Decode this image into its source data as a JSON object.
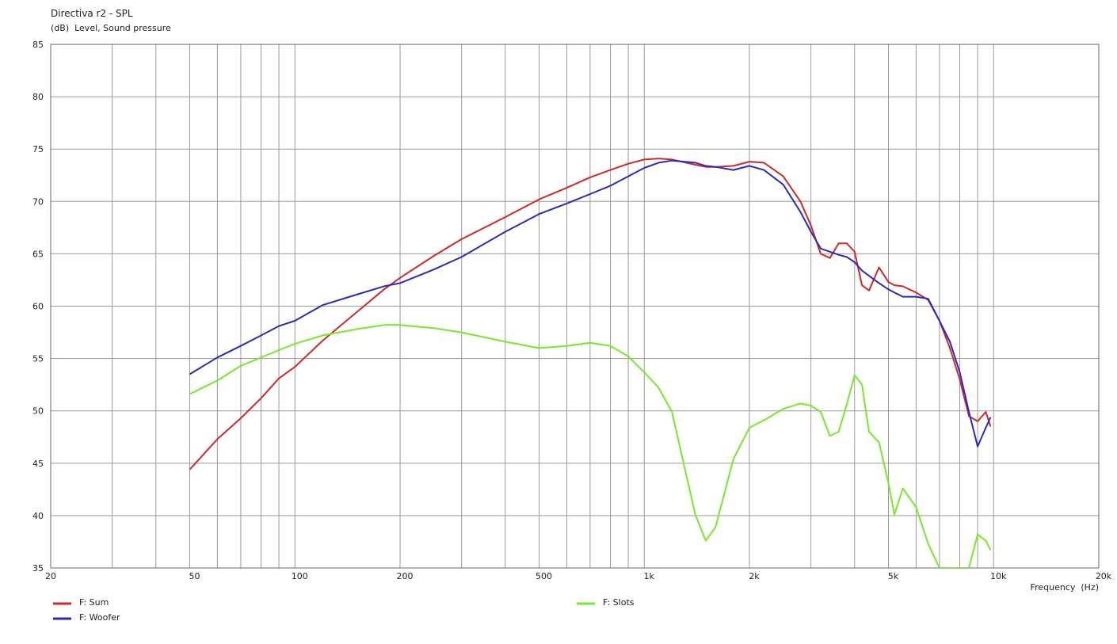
{
  "chart_data": {
    "type": "line",
    "title": "Directiva r2 - SPL",
    "y_label": "(dB)  Level, Sound pressure",
    "x_label": "Frequency  (Hz)",
    "xscale": "log",
    "grid": true,
    "xlim": [
      20,
      20000
    ],
    "ylim": [
      35,
      85
    ],
    "xticks": [
      20,
      50,
      100,
      200,
      500,
      {
        "value": 1000,
        "label": "1k"
      },
      {
        "value": 2000,
        "label": "2k"
      },
      {
        "value": 5000,
        "label": "5k"
      },
      {
        "value": 10000,
        "label": "10k"
      },
      {
        "value": 20000,
        "label": "20k"
      }
    ],
    "x_minor_ticks": [
      30,
      40,
      60,
      70,
      80,
      90,
      300,
      400,
      600,
      700,
      800,
      900,
      3000,
      4000,
      6000,
      7000,
      8000,
      9000
    ],
    "yticks": [
      35,
      40,
      45,
      50,
      55,
      60,
      65,
      70,
      75,
      80,
      85
    ],
    "x": [
      50,
      60,
      70,
      80,
      90,
      100,
      120,
      150,
      180,
      200,
      250,
      300,
      400,
      500,
      600,
      700,
      800,
      900,
      1000,
      1100,
      1200,
      1400,
      1500,
      1600,
      1800,
      2000,
      2200,
      2500,
      2800,
      3000,
      3200,
      3400,
      3600,
      3800,
      4000,
      4200,
      4400,
      4700,
      5000,
      5200,
      5500,
      6000,
      6500,
      7000,
      7500,
      8000,
      8500,
      9000,
      9500,
      9800
    ],
    "series": [
      {
        "name": "F: Sum",
        "color": "#cc2a2a",
        "values": [
          44.4,
          47.3,
          49.3,
          51.2,
          53.1,
          54.2,
          56.7,
          59.4,
          61.6,
          62.7,
          64.8,
          66.4,
          68.5,
          70.2,
          71.3,
          72.3,
          73.0,
          73.6,
          74.0,
          74.1,
          74.0,
          73.5,
          73.3,
          73.3,
          73.4,
          73.8,
          73.7,
          72.4,
          70.0,
          67.7,
          65.0,
          64.6,
          66.0,
          66.0,
          65.2,
          62.0,
          61.5,
          63.7,
          62.3,
          62.0,
          61.9,
          61.3,
          60.6,
          58.6,
          56.0,
          53.0,
          49.5,
          49.0,
          49.9,
          48.5
        ]
      },
      {
        "name": "F: Woofer",
        "color": "#2a2abb",
        "values": [
          53.5,
          55.1,
          56.2,
          57.2,
          58.1,
          58.6,
          60.1,
          61.1,
          61.9,
          62.2,
          63.5,
          64.7,
          67.1,
          68.8,
          69.8,
          70.7,
          71.5,
          72.4,
          73.2,
          73.7,
          73.9,
          73.7,
          73.4,
          73.3,
          73.0,
          73.4,
          73.0,
          71.6,
          69.0,
          67.1,
          65.5,
          65.2,
          64.9,
          64.7,
          64.2,
          63.4,
          62.9,
          62.2,
          61.6,
          61.3,
          60.9,
          60.9,
          60.7,
          58.6,
          56.6,
          53.7,
          49.9,
          46.6,
          48.4,
          49.4
        ]
      },
      {
        "name": "F: Slots",
        "color": "#77e82a",
        "values": [
          51.6,
          52.9,
          54.3,
          55.1,
          55.8,
          56.4,
          57.2,
          57.8,
          58.2,
          58.2,
          57.9,
          57.5,
          56.6,
          56.0,
          56.2,
          56.5,
          56.2,
          55.2,
          53.7,
          52.2,
          49.9,
          40.1,
          37.6,
          38.9,
          45.4,
          48.4,
          49.1,
          50.2,
          50.7,
          50.5,
          49.9,
          47.6,
          48.0,
          50.6,
          53.4,
          52.5,
          48.0,
          47.0,
          43.1,
          40.1,
          42.6,
          40.8,
          37.3,
          35,
          35,
          35,
          35,
          38.2,
          37.6,
          36.7
        ]
      }
    ]
  }
}
